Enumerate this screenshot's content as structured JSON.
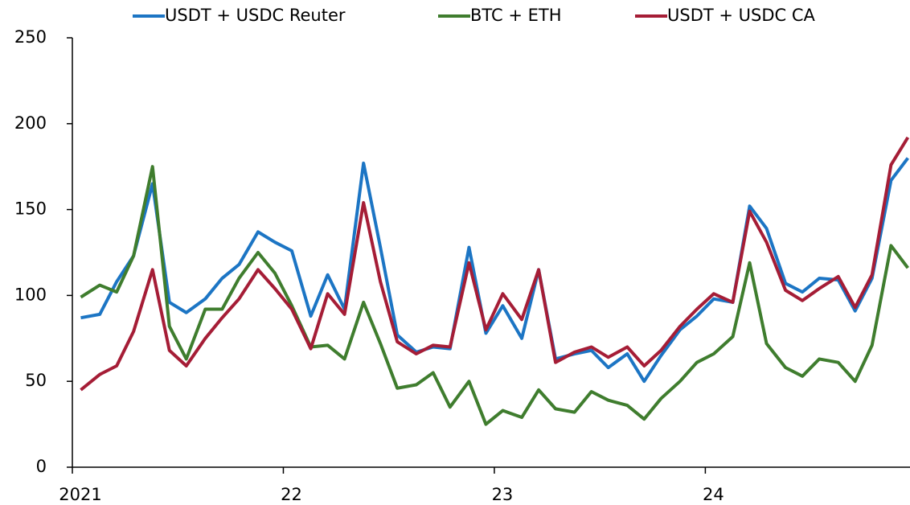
{
  "chart_data": {
    "type": "line",
    "x": [
      2021.04,
      2021.13,
      2021.21,
      2021.29,
      2021.38,
      2021.46,
      2021.54,
      2021.63,
      2021.71,
      2021.79,
      2021.88,
      2021.96,
      2022.04,
      2022.13,
      2022.21,
      2022.29,
      2022.38,
      2022.46,
      2022.54,
      2022.63,
      2022.71,
      2022.79,
      2022.88,
      2022.96,
      2023.04,
      2023.13,
      2023.21,
      2023.29,
      2023.38,
      2023.46,
      2023.54,
      2023.63,
      2023.71,
      2023.79,
      2023.88,
      2023.96,
      2024.04,
      2024.13,
      2024.21,
      2024.29,
      2024.38,
      2024.46,
      2024.54,
      2024.63,
      2024.71,
      2024.79,
      2024.88,
      2024.96
    ],
    "series": [
      {
        "name": "USDT + USDC Reuter",
        "color": "#1c75c4",
        "values": [
          87,
          89,
          108,
          123,
          165,
          96,
          90,
          98,
          110,
          118,
          137,
          131,
          126,
          88,
          112,
          92,
          177,
          128,
          77,
          67,
          70,
          69,
          128,
          78,
          94,
          75,
          115,
          63,
          66,
          68,
          58,
          66,
          50,
          65,
          80,
          88,
          98,
          96,
          152,
          139,
          107,
          102,
          110,
          109,
          91,
          110,
          167,
          180
        ]
      },
      {
        "name": "BTC + ETH",
        "color": "#3f7d2e",
        "values": [
          99,
          106,
          102,
          123,
          175,
          82,
          63,
          92,
          92,
          110,
          125,
          113,
          94,
          70,
          71,
          63,
          96,
          72,
          46,
          48,
          55,
          35,
          50,
          25,
          33,
          29,
          45,
          34,
          32,
          44,
          39,
          36,
          28,
          40,
          50,
          61,
          66,
          76,
          119,
          72,
          58,
          53,
          63,
          61,
          50,
          71,
          129,
          116
        ]
      },
      {
        "name": "USDT + USDC CA",
        "color": "#a51d36",
        "values": [
          45,
          54,
          59,
          79,
          115,
          68,
          59,
          75,
          87,
          98,
          115,
          104,
          92,
          69,
          101,
          89,
          154,
          108,
          73,
          66,
          71,
          70,
          119,
          80,
          101,
          86,
          115,
          61,
          67,
          70,
          64,
          70,
          59,
          68,
          82,
          92,
          101,
          96,
          149,
          131,
          103,
          97,
          104,
          111,
          93,
          112,
          176,
          192
        ]
      }
    ],
    "xlim": [
      2021,
      2024.97
    ],
    "xticks": [
      {
        "value": 2021,
        "label": "2021"
      },
      {
        "value": 2022,
        "label": "22"
      },
      {
        "value": 2023,
        "label": "23"
      },
      {
        "value": 2024,
        "label": "24"
      }
    ],
    "ylim": [
      0,
      250
    ],
    "yticks": [
      0,
      50,
      100,
      150,
      200,
      250
    ],
    "legend": "top"
  }
}
